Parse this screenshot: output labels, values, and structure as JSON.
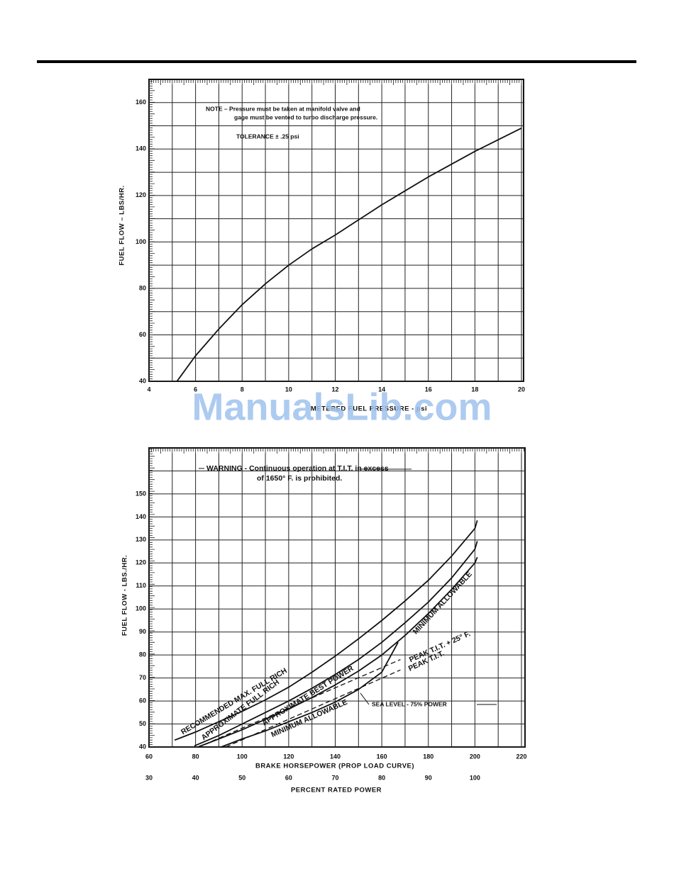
{
  "watermark": "ManualsLib.com",
  "chart_data": [
    {
      "type": "line",
      "x": [
        5.2,
        6,
        7,
        8,
        9,
        10,
        11,
        12,
        13,
        14,
        15,
        16,
        17,
        18,
        19,
        20
      ],
      "values": [
        40,
        51,
        62.5,
        73,
        82,
        90,
        97,
        103,
        109.5,
        116,
        122,
        128,
        133.5,
        139,
        144,
        149
      ],
      "color": "#111111",
      "xlabel": "METERED FUEL PRESSURE - psi",
      "ylabel": "FUEL FLOW – LBS/HR.",
      "annotations": [
        "NOTE – Pressure must be taken at manifold valve and",
        "gage must be vented to turbo discharge pressure.",
        "TOLERANCE ± .25 psi"
      ],
      "xlim": [
        4,
        20
      ],
      "ylim": [
        40,
        170
      ],
      "xticks": [
        4,
        6,
        8,
        10,
        12,
        14,
        16,
        18,
        20
      ],
      "yticks": [
        40,
        60,
        80,
        100,
        120,
        140,
        160
      ],
      "minor_xticks": [
        5,
        7,
        9,
        11,
        13,
        15,
        17,
        19
      ],
      "minor_yticks": [
        50,
        70,
        90,
        110,
        130,
        150
      ],
      "grid": true
    },
    {
      "type": "line",
      "series": [
        {
          "name": "RECOMMENDED MAX. FULL RICH",
          "color": "#111111",
          "style": "solid",
          "x": [
            71,
            80,
            90,
            100,
            110,
            120,
            130,
            140,
            150,
            160,
            170,
            180,
            190,
            200,
            201
          ],
          "values": [
            43,
            46.5,
            51,
            55.5,
            60.5,
            66,
            72.5,
            79.5,
            87,
            95,
            103.5,
            112.5,
            123,
            135,
            138.5
          ]
        },
        {
          "name": "APPROXIMATE FULL RICH",
          "color": "#111111",
          "style": "solid",
          "x": [
            79.5,
            90,
            100,
            110,
            120,
            130,
            140,
            150,
            160,
            170,
            180,
            190,
            200,
            201
          ],
          "values": [
            40.5,
            45,
            50,
            55,
            60,
            65.5,
            71.5,
            78,
            85.5,
            94,
            103,
            113.5,
            126,
            129.5
          ]
        },
        {
          "name": "APPROXIMATE BEST POWER",
          "color": "#111111",
          "style": "solid",
          "x": [
            81,
            90,
            100,
            110,
            120,
            130,
            140,
            150,
            160,
            170,
            180,
            190,
            200,
            201
          ],
          "values": [
            40,
            43.5,
            47.5,
            52,
            56.5,
            61.5,
            67,
            73,
            80,
            88.5,
            98,
            108.5,
            120,
            122.5
          ]
        },
        {
          "name": "MINIMUM ALLOWABLE",
          "color": "#111111",
          "style": "solid",
          "x": [
            91,
            100,
            110,
            120,
            130,
            140,
            150,
            160,
            167
          ],
          "values": [
            40,
            43.5,
            47,
            51,
            55,
            59.5,
            65,
            72.5,
            85.5
          ]
        },
        {
          "name": "PEAK T.I.T. + 25° F.",
          "color": "#111111",
          "style": "dashed",
          "x": [
            87,
            168
          ],
          "values": [
            42.5,
            78
          ]
        },
        {
          "name": "PEAK T.I.T.",
          "color": "#111111",
          "style": "dashed",
          "x": [
            93,
            168
          ],
          "values": [
            40,
            73.5
          ]
        }
      ],
      "xlabel": "BRAKE HORSEPOWER (PROP LOAD CURVE)",
      "x2label": "PERCENT RATED POWER",
      "ylabel": "FUEL FLOW - LBS./HR.",
      "annotations": [
        "WARNING - Continuous operation at T.I.T. in excess",
        "of 1650° F. is prohibited.",
        "SEA LEVEL - 75% POWER"
      ],
      "xlim": [
        60,
        220
      ],
      "x2lim": [
        30,
        110
      ],
      "ylim": [
        40,
        170
      ],
      "xticks": [
        60,
        80,
        100,
        120,
        140,
        160,
        180,
        200,
        220
      ],
      "x2ticks": [
        30,
        40,
        50,
        60,
        70,
        80,
        90,
        100
      ],
      "yticks": [
        40,
        50,
        60,
        70,
        80,
        90,
        100,
        110,
        120,
        130,
        140,
        150
      ],
      "minor_xticks": [
        70,
        90,
        110,
        130,
        150,
        170,
        190,
        210
      ],
      "minor_yticks": [
        160
      ],
      "grid": true
    }
  ]
}
